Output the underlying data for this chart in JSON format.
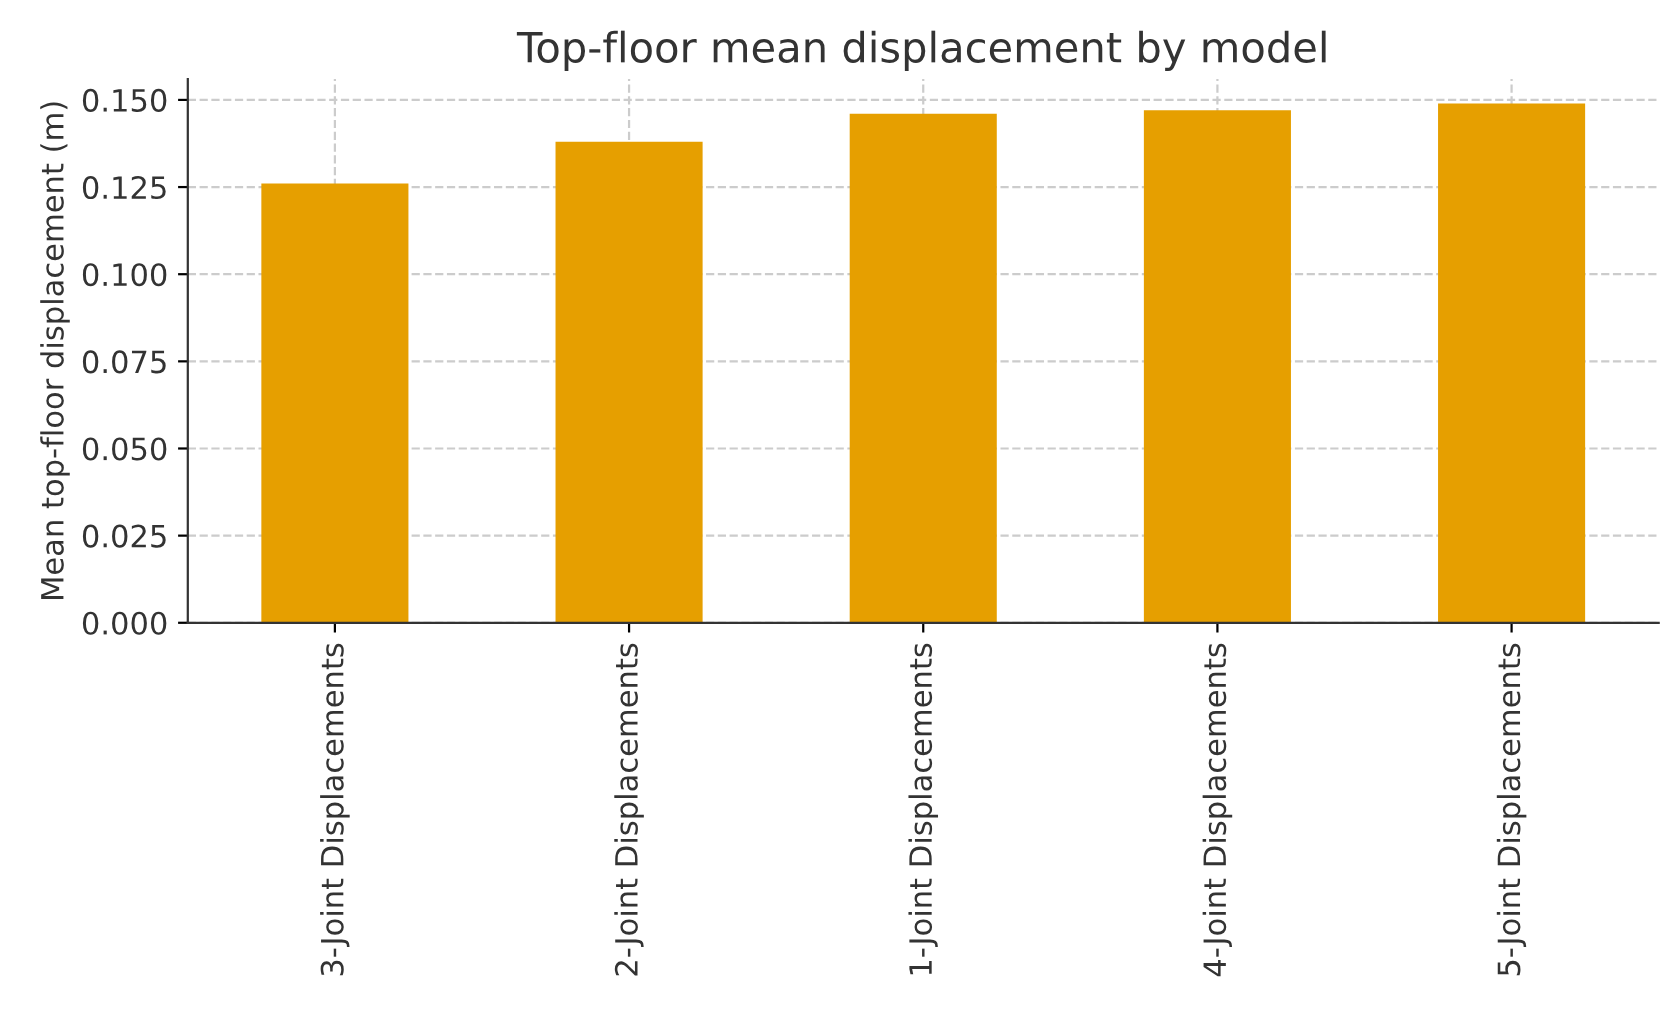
{
  "chart_data": {
    "type": "bar",
    "title": "Top-floor mean displacement by model",
    "ylabel": "Mean top-floor displacement (m)",
    "categories": [
      "3-Joint Displacements",
      "2-Joint Displacements",
      "1-Joint Displacements",
      "4-Joint Displacements",
      "5-Joint Displacements"
    ],
    "values": [
      0.126,
      0.138,
      0.146,
      0.147,
      0.149
    ],
    "color": "#e69f00",
    "ylim": [
      0,
      0.156
    ],
    "yticks": [
      {
        "value": 0,
        "label": "0.000"
      },
      {
        "value": 0.025,
        "label": "0.025"
      },
      {
        "value": 0.05,
        "label": "0.050"
      },
      {
        "value": 0.075,
        "label": "0.075"
      },
      {
        "value": 0.1,
        "label": "0.100"
      },
      {
        "value": 0.125,
        "label": "0.125"
      },
      {
        "value": 0.15,
        "label": "0.150"
      }
    ],
    "grid": true
  }
}
